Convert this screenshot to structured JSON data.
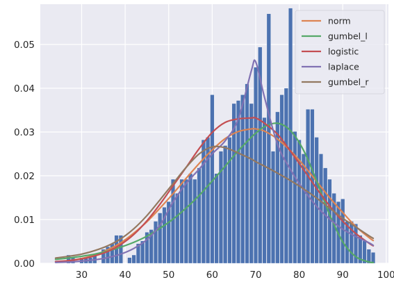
{
  "chart_data": {
    "type": "bar",
    "title": "",
    "xlabel": "",
    "ylabel": "",
    "xlim": [
      20.5,
      100.5
    ],
    "ylim": [
      0,
      0.0592
    ],
    "xticks": [
      30,
      40,
      50,
      60,
      70,
      80,
      90,
      100
    ],
    "yticks": [
      0.0,
      0.01,
      0.02,
      0.03,
      0.04,
      0.05
    ],
    "ytick_labels": [
      "0.00",
      "0.01",
      "0.02",
      "0.03",
      "0.04",
      "0.05"
    ],
    "grid": true,
    "background": "#eaeaf2",
    "bar_color": "#4c72b0",
    "histogram": {
      "bin_width": 0.9,
      "x": [
        27,
        28,
        30,
        31,
        32,
        33,
        35,
        36,
        37,
        38,
        39,
        41,
        42,
        43,
        44,
        45,
        46,
        47,
        48,
        49,
        50,
        51,
        52,
        53,
        54,
        55,
        56,
        57,
        58,
        59,
        60,
        61,
        62,
        63,
        64,
        65,
        66,
        67,
        68,
        69,
        70,
        71,
        72,
        73,
        74,
        75,
        76,
        77,
        78,
        79,
        80,
        81,
        82,
        83,
        84,
        85,
        86,
        87,
        88,
        89,
        90,
        91,
        92,
        93,
        94,
        95,
        96,
        97
      ],
      "values": [
        0.0019,
        0.0013,
        0.0013,
        0.0013,
        0.0013,
        0.0019,
        0.0032,
        0.0038,
        0.0045,
        0.0064,
        0.0064,
        0.0013,
        0.0019,
        0.0045,
        0.0051,
        0.0071,
        0.0077,
        0.0096,
        0.0115,
        0.0128,
        0.0141,
        0.0192,
        0.016,
        0.0192,
        0.0192,
        0.0205,
        0.0192,
        0.0218,
        0.0282,
        0.0288,
        0.0385,
        0.0205,
        0.0256,
        0.0269,
        0.0288,
        0.0365,
        0.0372,
        0.0385,
        0.041,
        0.0365,
        0.0448,
        0.0494,
        0.0333,
        0.057,
        0.0256,
        0.0346,
        0.0385,
        0.04,
        0.0583,
        0.0301,
        0.0282,
        0.025,
        0.0352,
        0.0352,
        0.0288,
        0.025,
        0.0218,
        0.0192,
        0.016,
        0.0141,
        0.0147,
        0.0096,
        0.0096,
        0.009,
        0.0064,
        0.0051,
        0.0032,
        0.0025
      ]
    },
    "curve_x": [
      24,
      27,
      30,
      33,
      36,
      39,
      42,
      45,
      48,
      51,
      54,
      57,
      60,
      63,
      66,
      69,
      70,
      72,
      75,
      78,
      81,
      84,
      87,
      90,
      93,
      96,
      97
    ],
    "series": [
      {
        "name": "norm",
        "color": "#dd8452",
        "values": [
          0.0003,
          0.0006,
          0.0011,
          0.0019,
          0.0031,
          0.0047,
          0.0069,
          0.0095,
          0.0126,
          0.0159,
          0.0194,
          0.0228,
          0.0259,
          0.0285,
          0.0301,
          0.0307,
          0.0307,
          0.0302,
          0.0284,
          0.0257,
          0.0224,
          0.0187,
          0.015,
          0.0116,
          0.0084,
          0.0059,
          0.0052
        ]
      },
      {
        "name": "gumbel_l",
        "color": "#55a868",
        "values": [
          0.0009,
          0.0012,
          0.0016,
          0.0021,
          0.0028,
          0.0037,
          0.0048,
          0.0062,
          0.008,
          0.0101,
          0.0126,
          0.0155,
          0.0188,
          0.0222,
          0.0257,
          0.0288,
          0.0297,
          0.0312,
          0.032,
          0.0303,
          0.0258,
          0.0188,
          0.0111,
          0.0049,
          0.0015,
          0.0003,
          0.0002
        ]
      },
      {
        "name": "logistic",
        "color": "#c44e52",
        "values": [
          0.0004,
          0.0006,
          0.001,
          0.0017,
          0.0027,
          0.0043,
          0.0066,
          0.0097,
          0.0135,
          0.0177,
          0.0219,
          0.0262,
          0.0299,
          0.0322,
          0.033,
          0.0332,
          0.0332,
          0.032,
          0.0295,
          0.0256,
          0.0214,
          0.0171,
          0.0131,
          0.0096,
          0.0068,
          0.0046,
          0.004
        ]
      },
      {
        "name": "laplace",
        "color": "#8172b3",
        "values": [
          0.0002,
          0.0003,
          0.0005,
          0.0008,
          0.0013,
          0.0021,
          0.0034,
          0.0054,
          0.0087,
          0.014,
          0.0182,
          0.0215,
          0.025,
          0.028,
          0.033,
          0.044,
          0.046,
          0.038,
          0.0272,
          0.0214,
          0.0168,
          0.013,
          0.0101,
          0.0078,
          0.0061,
          0.0047,
          0.0041
        ]
      },
      {
        "name": "gumbel_r",
        "color": "#937860",
        "values": [
          0.0012,
          0.0016,
          0.0021,
          0.0029,
          0.004,
          0.0056,
          0.0079,
          0.0109,
          0.0145,
          0.0182,
          0.0219,
          0.025,
          0.0266,
          0.0264,
          0.0252,
          0.0238,
          0.0232,
          0.0222,
          0.0206,
          0.0189,
          0.017,
          0.0149,
          0.0126,
          0.0103,
          0.0083,
          0.0063,
          0.0057
        ]
      }
    ],
    "legend_position": "top-right"
  }
}
